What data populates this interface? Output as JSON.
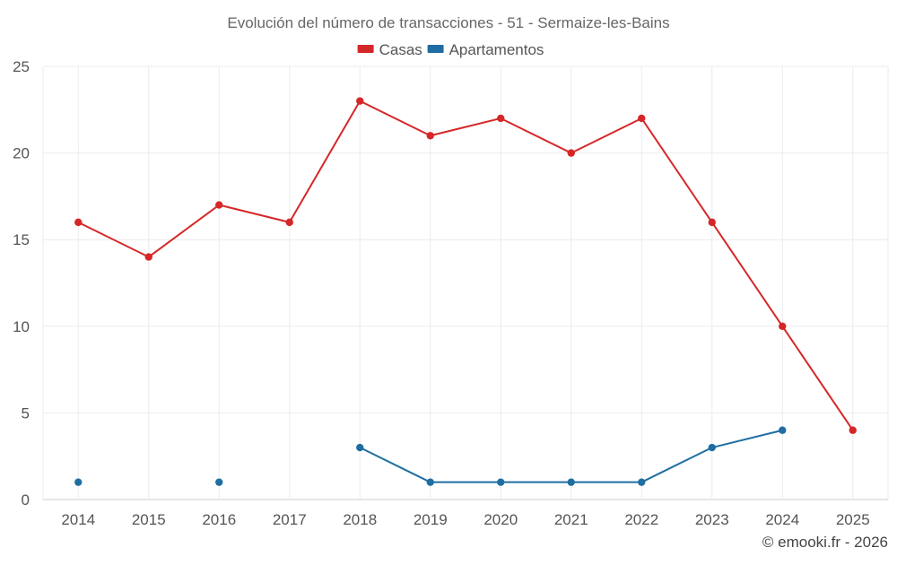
{
  "chart_data": {
    "type": "line",
    "title": "Evolución del número de transacciones - 51 - Sermaize-les-Bains",
    "categories": [
      "2014",
      "2015",
      "2016",
      "2017",
      "2018",
      "2019",
      "2020",
      "2021",
      "2022",
      "2023",
      "2024",
      "2025"
    ],
    "series": [
      {
        "name": "Casas",
        "color": "#d62728",
        "values": [
          16,
          14,
          17,
          16,
          23,
          21,
          22,
          20,
          22,
          16,
          10,
          4
        ]
      },
      {
        "name": "Apartamentos",
        "color": "#1f6ea3",
        "values": [
          1,
          null,
          1,
          null,
          3,
          1,
          1,
          1,
          1,
          3,
          4,
          null
        ]
      }
    ],
    "yticks": [
      "0",
      "5",
      "10",
      "15",
      "20",
      "25"
    ],
    "ylim": [
      0,
      25
    ],
    "xlabel": "",
    "ylabel": "",
    "grid": true,
    "legend_position": "top-center"
  },
  "footer": {
    "credit": "© emooki.fr - 2026"
  }
}
